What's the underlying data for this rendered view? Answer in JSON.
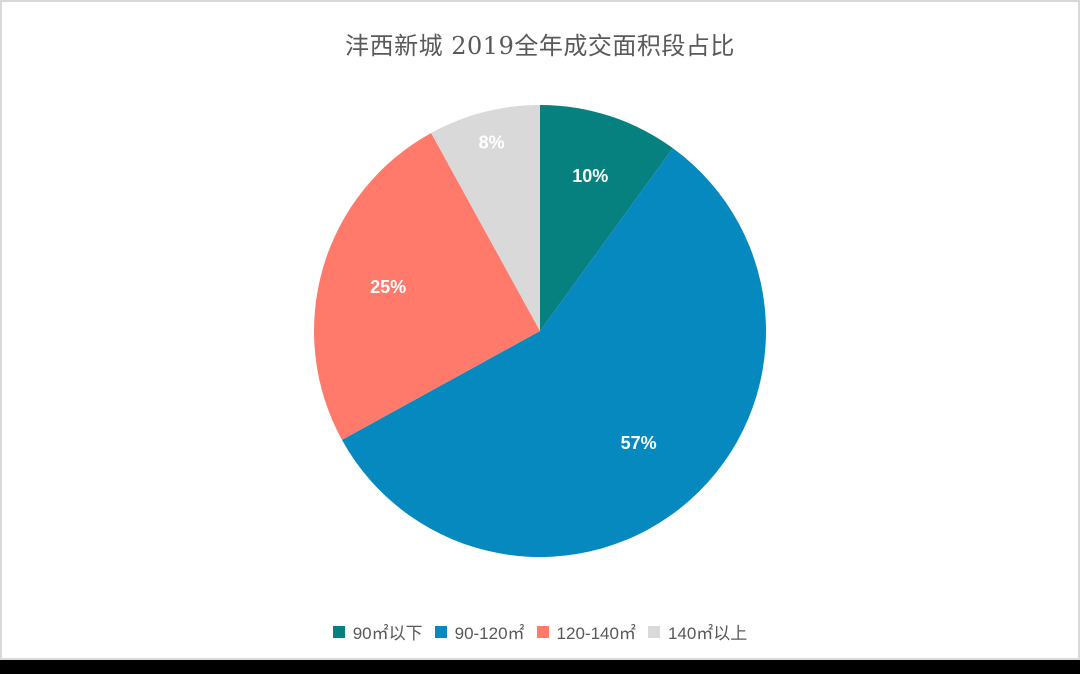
{
  "chart_data": {
    "type": "pie",
    "title": "沣西新城 2019全年成交面积段占比",
    "categories": [
      "90㎡以下",
      "90-120㎡",
      "120-140㎡",
      "140㎡以上"
    ],
    "values": [
      10,
      57,
      25,
      8
    ],
    "labels": [
      "10%",
      "57%",
      "25%",
      "8%"
    ],
    "colors": [
      "#078080",
      "#0689bf",
      "#ff7a6b",
      "#d9d9d9"
    ],
    "start_angle_deg": 0,
    "direction": "clockwise",
    "legend_position": "bottom",
    "data_labels": "inside"
  },
  "legend": {
    "items": [
      {
        "label": "90㎡以下",
        "color": "#078080"
      },
      {
        "label": "90-120㎡",
        "color": "#0689bf"
      },
      {
        "label": "120-140㎡",
        "color": "#ff7a6b"
      },
      {
        "label": "140㎡以上",
        "color": "#d9d9d9"
      }
    ]
  }
}
